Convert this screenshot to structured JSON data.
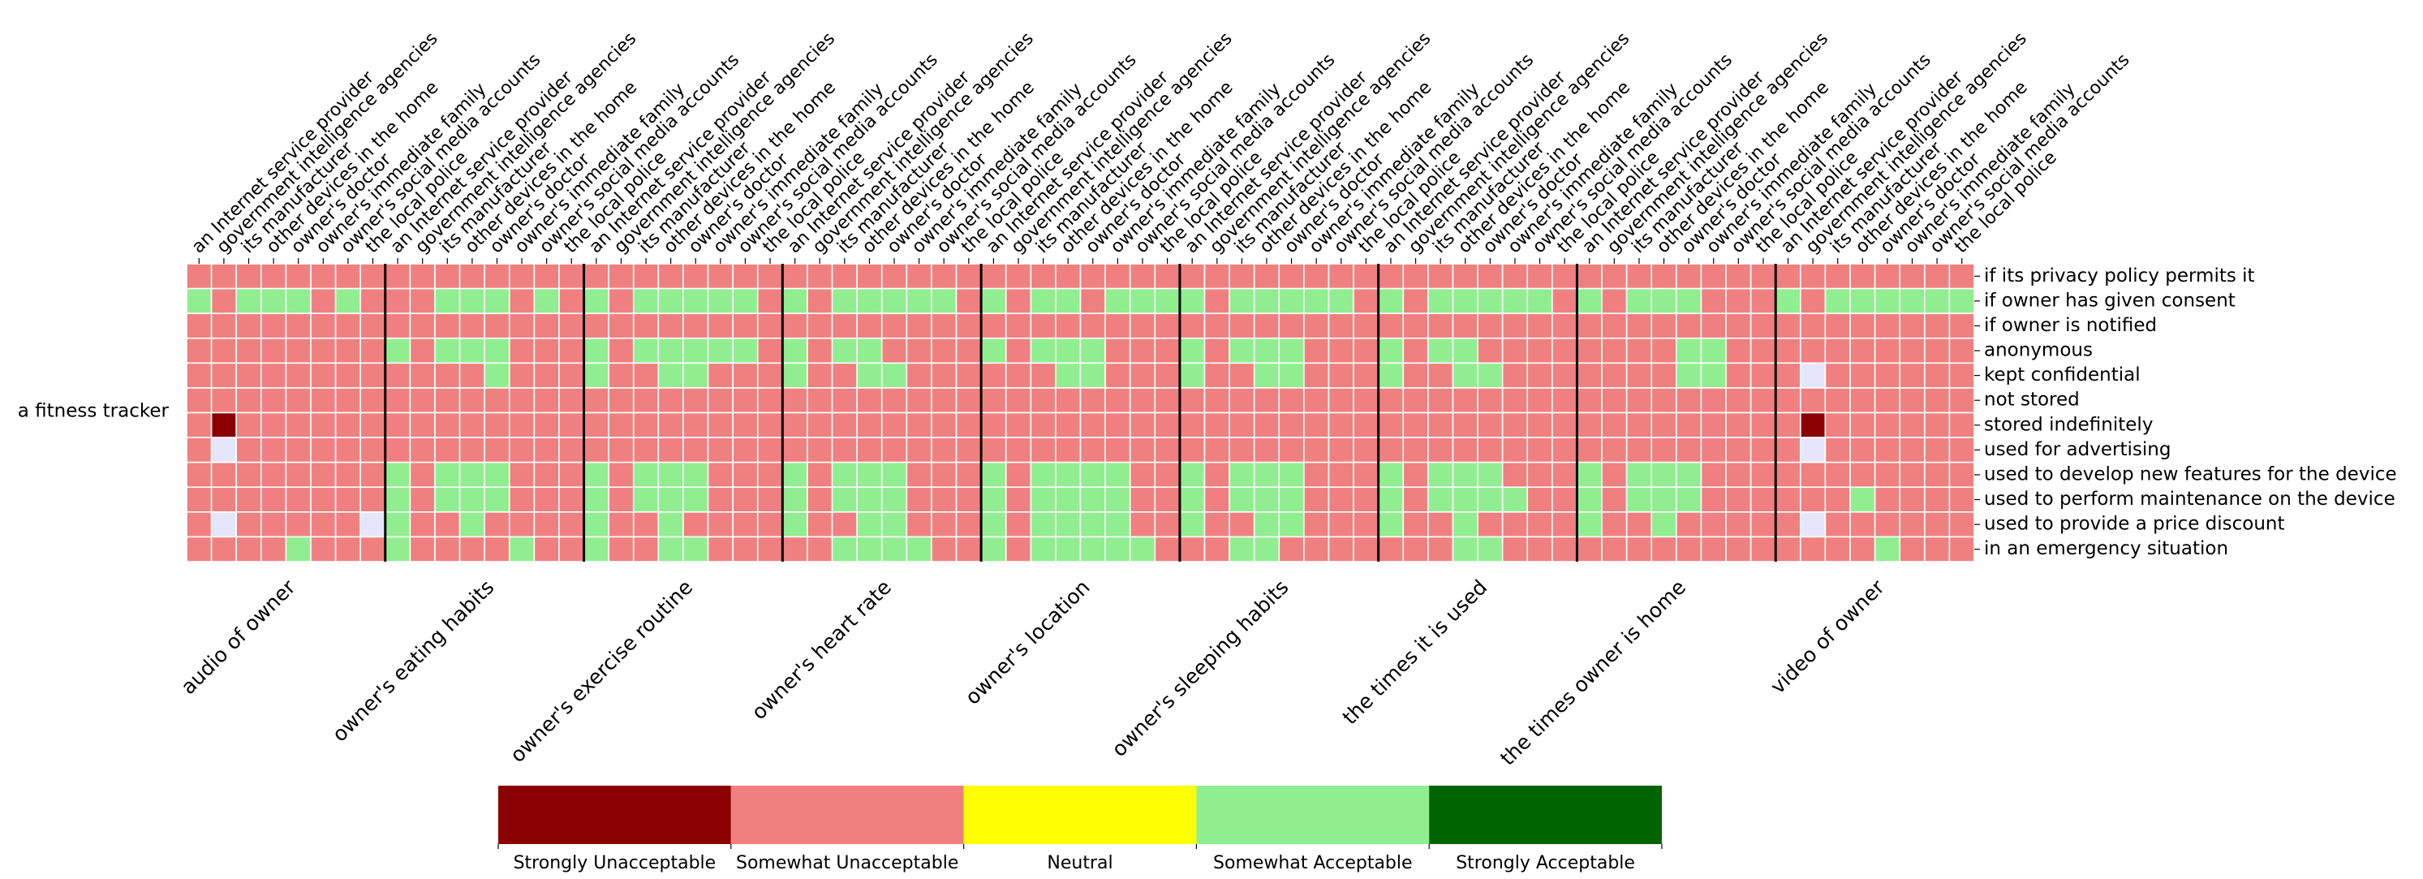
{
  "chart_data": {
    "type": "heatmap",
    "row_group_label": "a fitness tracker",
    "recipients": [
      "an Internet service provider",
      "government intelligence agencies",
      "its manufacturer",
      "other devices in the home",
      "owner's doctor",
      "owner's immediate family",
      "owner's social media accounts",
      "the local police"
    ],
    "attributes": [
      "audio of owner",
      "owner's eating habits",
      "owner's exercise routine",
      "owner's heart rate",
      "owner's location",
      "owner's sleeping habits",
      "the times it is used",
      "the times owner is home",
      "video of owner"
    ],
    "conditions": [
      "if its privacy policy permits it",
      "if owner has given consent",
      "if owner is notified",
      "anonymous",
      "kept confidential",
      "not stored",
      "stored indefinitely",
      "used for advertising",
      "used to develop new features for the device",
      "used to perform maintenance on the device",
      "used to provide a price discount",
      "in an emergency situation"
    ],
    "legend": {
      "labels": [
        "Strongly Unacceptable",
        "Somewhat Unacceptable",
        "Neutral",
        "Somewhat Acceptable",
        "Strongly Acceptable"
      ],
      "colors": [
        "#8b0000",
        "#f08080",
        "#ffff00",
        "#90ee90",
        "#006400"
      ],
      "missing_color": "#e6e6fa",
      "placement": "bottom"
    },
    "value_scale": "-2 Strongly Unacceptable, -1 Somewhat Unacceptable, 0 Neutral, 1 Somewhat Acceptable, 2 Strongly Acceptable, null no data",
    "values": [
      [
        -1,
        -1,
        -1,
        -1,
        -1,
        -1,
        -1,
        -1,
        -1,
        -1,
        -1,
        -1,
        -1,
        -1,
        -1,
        -1,
        -1,
        -1,
        -1,
        -1,
        -1,
        -1,
        -1,
        -1,
        -1,
        -1,
        -1,
        -1,
        -1,
        -1,
        -1,
        -1,
        -1,
        -1,
        -1,
        -1,
        -1,
        -1,
        -1,
        -1,
        -1,
        -1,
        -1,
        -1,
        -1,
        -1,
        -1,
        -1,
        -1,
        -1,
        -1,
        -1,
        -1,
        -1,
        -1,
        -1,
        -1,
        -1,
        -1,
        -1,
        -1,
        -1,
        -1,
        -1,
        -1,
        -1,
        -1,
        -1,
        -1,
        -1,
        -1,
        -1
      ],
      [
        1,
        -1,
        1,
        1,
        1,
        -1,
        1,
        -1,
        -1,
        -1,
        1,
        1,
        1,
        -1,
        1,
        -1,
        1,
        -1,
        1,
        1,
        1,
        1,
        1,
        -1,
        1,
        -1,
        1,
        1,
        1,
        1,
        1,
        -1,
        1,
        -1,
        1,
        1,
        -1,
        1,
        1,
        1,
        1,
        -1,
        1,
        1,
        1,
        1,
        1,
        -1,
        1,
        -1,
        1,
        1,
        1,
        1,
        1,
        -1,
        1,
        -1,
        1,
        1,
        1,
        -1,
        -1,
        -1,
        1,
        -1,
        1,
        1,
        1,
        1,
        1,
        1
      ],
      [
        -1,
        -1,
        -1,
        -1,
        -1,
        -1,
        -1,
        -1,
        -1,
        -1,
        -1,
        -1,
        -1,
        -1,
        -1,
        -1,
        -1,
        -1,
        -1,
        -1,
        -1,
        -1,
        -1,
        -1,
        -1,
        -1,
        -1,
        -1,
        -1,
        -1,
        -1,
        -1,
        -1,
        -1,
        -1,
        -1,
        -1,
        -1,
        -1,
        -1,
        -1,
        -1,
        -1,
        -1,
        -1,
        -1,
        -1,
        -1,
        -1,
        -1,
        -1,
        -1,
        -1,
        -1,
        -1,
        -1,
        -1,
        -1,
        -1,
        -1,
        -1,
        -1,
        -1,
        -1,
        -1,
        -1,
        -1,
        -1,
        -1,
        -1,
        -1,
        -1
      ],
      [
        -1,
        -1,
        -1,
        -1,
        -1,
        -1,
        -1,
        -1,
        1,
        -1,
        1,
        1,
        1,
        -1,
        -1,
        -1,
        1,
        -1,
        1,
        1,
        1,
        1,
        1,
        -1,
        1,
        -1,
        1,
        1,
        -1,
        -1,
        -1,
        -1,
        1,
        -1,
        1,
        1,
        1,
        -1,
        -1,
        -1,
        1,
        -1,
        1,
        1,
        1,
        -1,
        -1,
        -1,
        1,
        -1,
        1,
        1,
        -1,
        -1,
        -1,
        -1,
        -1,
        -1,
        -1,
        -1,
        1,
        1,
        -1,
        -1,
        -1,
        -1,
        -1,
        -1,
        -1,
        -1,
        -1,
        -1
      ],
      [
        -1,
        -1,
        -1,
        -1,
        -1,
        -1,
        -1,
        -1,
        -1,
        -1,
        -1,
        -1,
        1,
        -1,
        -1,
        -1,
        1,
        -1,
        -1,
        1,
        1,
        -1,
        -1,
        -1,
        1,
        -1,
        -1,
        1,
        1,
        -1,
        -1,
        -1,
        -1,
        -1,
        -1,
        1,
        1,
        -1,
        -1,
        -1,
        1,
        -1,
        -1,
        1,
        1,
        -1,
        -1,
        -1,
        1,
        -1,
        -1,
        1,
        1,
        -1,
        -1,
        -1,
        -1,
        -1,
        -1,
        -1,
        1,
        1,
        -1,
        -1,
        -1,
        null,
        -1,
        -1,
        -1,
        -1,
        -1,
        -1
      ],
      [
        -1,
        -1,
        -1,
        -1,
        -1,
        -1,
        -1,
        -1,
        -1,
        -1,
        -1,
        -1,
        -1,
        -1,
        -1,
        -1,
        -1,
        -1,
        -1,
        -1,
        -1,
        -1,
        -1,
        -1,
        -1,
        -1,
        -1,
        -1,
        -1,
        -1,
        -1,
        -1,
        -1,
        -1,
        -1,
        -1,
        -1,
        -1,
        -1,
        -1,
        -1,
        -1,
        -1,
        -1,
        -1,
        -1,
        -1,
        -1,
        -1,
        -1,
        -1,
        -1,
        -1,
        -1,
        -1,
        -1,
        -1,
        -1,
        -1,
        -1,
        -1,
        -1,
        -1,
        -1,
        -1,
        -1,
        -1,
        -1,
        -1,
        -1,
        -1,
        -1
      ],
      [
        -1,
        -2,
        -1,
        -1,
        -1,
        -1,
        -1,
        -1,
        -1,
        -1,
        -1,
        -1,
        -1,
        -1,
        -1,
        -1,
        -1,
        -1,
        -1,
        -1,
        -1,
        -1,
        -1,
        -1,
        -1,
        -1,
        -1,
        -1,
        -1,
        -1,
        -1,
        -1,
        -1,
        -1,
        -1,
        -1,
        -1,
        -1,
        -1,
        -1,
        -1,
        -1,
        -1,
        -1,
        -1,
        -1,
        -1,
        -1,
        -1,
        -1,
        -1,
        -1,
        -1,
        -1,
        -1,
        -1,
        -1,
        -1,
        -1,
        -1,
        -1,
        -1,
        -1,
        -1,
        -1,
        -2,
        -1,
        -1,
        -1,
        -1,
        -1,
        -1
      ],
      [
        -1,
        null,
        -1,
        -1,
        -1,
        -1,
        -1,
        -1,
        -1,
        -1,
        -1,
        -1,
        -1,
        -1,
        -1,
        -1,
        -1,
        -1,
        -1,
        -1,
        -1,
        -1,
        -1,
        -1,
        -1,
        -1,
        -1,
        -1,
        -1,
        -1,
        -1,
        -1,
        -1,
        -1,
        -1,
        -1,
        -1,
        -1,
        -1,
        -1,
        -1,
        -1,
        -1,
        -1,
        -1,
        -1,
        -1,
        -1,
        -1,
        -1,
        -1,
        -1,
        -1,
        -1,
        -1,
        -1,
        -1,
        -1,
        -1,
        -1,
        -1,
        -1,
        -1,
        -1,
        -1,
        null,
        -1,
        -1,
        -1,
        -1,
        -1,
        -1
      ],
      [
        -1,
        -1,
        -1,
        -1,
        -1,
        -1,
        -1,
        -1,
        1,
        -1,
        1,
        1,
        1,
        -1,
        -1,
        -1,
        1,
        -1,
        1,
        1,
        1,
        -1,
        -1,
        -1,
        1,
        -1,
        1,
        1,
        1,
        -1,
        -1,
        -1,
        1,
        -1,
        1,
        1,
        1,
        1,
        -1,
        -1,
        1,
        -1,
        1,
        1,
        1,
        -1,
        -1,
        -1,
        1,
        -1,
        1,
        1,
        1,
        -1,
        -1,
        -1,
        1,
        -1,
        1,
        1,
        1,
        -1,
        -1,
        -1,
        -1,
        -1,
        -1,
        -1,
        -1,
        -1,
        -1,
        -1
      ],
      [
        -1,
        -1,
        -1,
        -1,
        -1,
        -1,
        -1,
        -1,
        1,
        -1,
        1,
        1,
        1,
        -1,
        -1,
        -1,
        1,
        -1,
        1,
        1,
        1,
        -1,
        -1,
        -1,
        1,
        -1,
        1,
        1,
        1,
        -1,
        -1,
        -1,
        1,
        -1,
        1,
        1,
        1,
        1,
        -1,
        -1,
        1,
        -1,
        1,
        1,
        1,
        -1,
        -1,
        -1,
        1,
        -1,
        1,
        1,
        1,
        1,
        -1,
        -1,
        1,
        -1,
        1,
        1,
        1,
        -1,
        -1,
        -1,
        -1,
        -1,
        -1,
        1,
        -1,
        -1,
        -1,
        -1
      ],
      [
        -1,
        null,
        -1,
        -1,
        -1,
        -1,
        -1,
        null,
        1,
        -1,
        -1,
        1,
        -1,
        -1,
        -1,
        -1,
        1,
        -1,
        -1,
        1,
        -1,
        -1,
        -1,
        -1,
        1,
        -1,
        -1,
        1,
        1,
        -1,
        -1,
        -1,
        1,
        -1,
        1,
        1,
        1,
        1,
        -1,
        -1,
        1,
        -1,
        -1,
        1,
        1,
        -1,
        -1,
        -1,
        1,
        -1,
        -1,
        1,
        -1,
        -1,
        -1,
        -1,
        1,
        -1,
        -1,
        1,
        -1,
        -1,
        -1,
        -1,
        -1,
        null,
        -1,
        -1,
        -1,
        -1,
        -1,
        -1
      ],
      [
        -1,
        -1,
        -1,
        -1,
        1,
        -1,
        -1,
        -1,
        1,
        -1,
        -1,
        -1,
        -1,
        1,
        -1,
        -1,
        1,
        -1,
        -1,
        1,
        1,
        -1,
        -1,
        -1,
        -1,
        -1,
        1,
        1,
        1,
        1,
        -1,
        -1,
        1,
        -1,
        1,
        1,
        1,
        1,
        1,
        -1,
        -1,
        -1,
        1,
        1,
        -1,
        -1,
        -1,
        -1,
        -1,
        -1,
        -1,
        1,
        1,
        -1,
        -1,
        -1,
        -1,
        -1,
        -1,
        -1,
        -1,
        -1,
        -1,
        -1,
        -1,
        -1,
        -1,
        -1,
        1,
        -1,
        -1,
        -1
      ]
    ]
  }
}
